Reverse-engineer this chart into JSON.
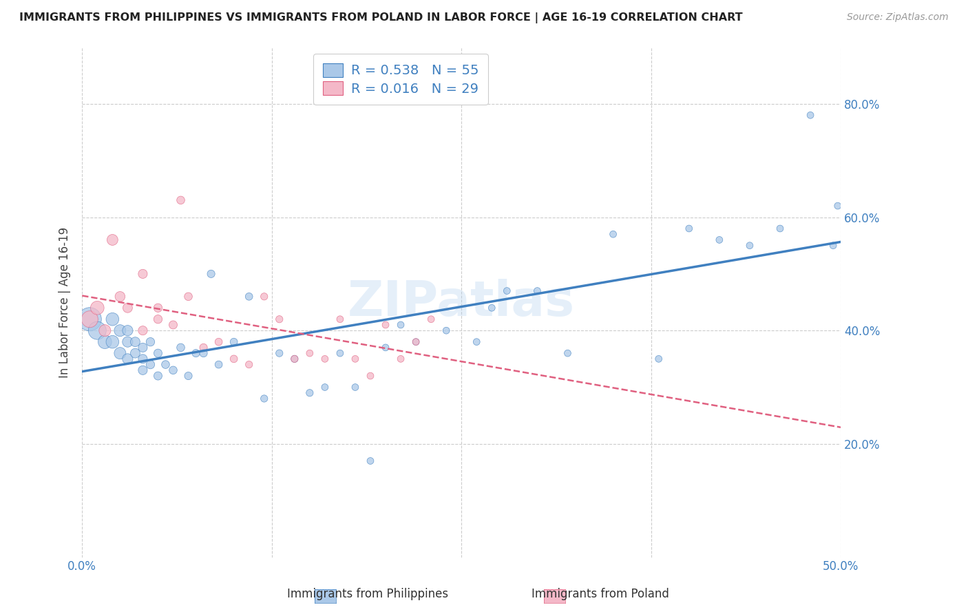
{
  "title": "IMMIGRANTS FROM PHILIPPINES VS IMMIGRANTS FROM POLAND IN LABOR FORCE | AGE 16-19 CORRELATION CHART",
  "source": "Source: ZipAtlas.com",
  "ylabel": "In Labor Force | Age 16-19",
  "xlim": [
    0.0,
    0.5
  ],
  "ylim": [
    0.0,
    0.9
  ],
  "ytick_positions": [
    0.2,
    0.4,
    0.6,
    0.8
  ],
  "ytick_labels": [
    "20.0%",
    "40.0%",
    "60.0%",
    "80.0%"
  ],
  "xtick_positions": [
    0.0,
    0.125,
    0.25,
    0.375,
    0.5
  ],
  "xtick_labels": [
    "0.0%",
    "",
    "",
    "",
    "50.0%"
  ],
  "grid_color": "#cccccc",
  "watermark": "ZIPatlas",
  "philippines_color": "#aac8e8",
  "poland_color": "#f4b8c8",
  "philippines_line_color": "#4080c0",
  "poland_line_color": "#e06080",
  "legend_r1": "R = 0.538",
  "legend_n1": "N = 55",
  "legend_r2": "R = 0.016",
  "legend_n2": "N = 29",
  "legend_label1": "Immigrants from Philippines",
  "legend_label2": "Immigrants from Poland",
  "philippines_x": [
    0.005,
    0.01,
    0.015,
    0.02,
    0.02,
    0.025,
    0.025,
    0.03,
    0.03,
    0.03,
    0.035,
    0.035,
    0.04,
    0.04,
    0.04,
    0.045,
    0.045,
    0.05,
    0.05,
    0.055,
    0.06,
    0.065,
    0.07,
    0.075,
    0.08,
    0.085,
    0.09,
    0.1,
    0.11,
    0.12,
    0.13,
    0.14,
    0.15,
    0.16,
    0.17,
    0.18,
    0.19,
    0.2,
    0.21,
    0.22,
    0.24,
    0.26,
    0.27,
    0.28,
    0.3,
    0.32,
    0.35,
    0.38,
    0.4,
    0.42,
    0.44,
    0.46,
    0.48,
    0.495,
    0.498
  ],
  "philippines_y": [
    0.42,
    0.4,
    0.38,
    0.42,
    0.38,
    0.4,
    0.36,
    0.38,
    0.35,
    0.4,
    0.38,
    0.36,
    0.35,
    0.37,
    0.33,
    0.38,
    0.34,
    0.36,
    0.32,
    0.34,
    0.33,
    0.37,
    0.32,
    0.36,
    0.36,
    0.5,
    0.34,
    0.38,
    0.46,
    0.28,
    0.36,
    0.35,
    0.29,
    0.3,
    0.36,
    0.3,
    0.17,
    0.37,
    0.41,
    0.38,
    0.4,
    0.38,
    0.44,
    0.47,
    0.47,
    0.36,
    0.57,
    0.35,
    0.58,
    0.56,
    0.55,
    0.58,
    0.78,
    0.55,
    0.62
  ],
  "poland_x": [
    0.005,
    0.01,
    0.015,
    0.02,
    0.025,
    0.03,
    0.04,
    0.04,
    0.05,
    0.05,
    0.06,
    0.065,
    0.07,
    0.08,
    0.09,
    0.1,
    0.11,
    0.12,
    0.13,
    0.14,
    0.15,
    0.16,
    0.17,
    0.18,
    0.19,
    0.2,
    0.21,
    0.22,
    0.23
  ],
  "poland_y": [
    0.42,
    0.44,
    0.4,
    0.56,
    0.46,
    0.44,
    0.5,
    0.4,
    0.42,
    0.44,
    0.41,
    0.63,
    0.46,
    0.37,
    0.38,
    0.35,
    0.34,
    0.46,
    0.42,
    0.35,
    0.36,
    0.35,
    0.42,
    0.35,
    0.32,
    0.41,
    0.35,
    0.38,
    0.42
  ],
  "philippines_sizes": [
    600,
    350,
    200,
    180,
    180,
    150,
    150,
    120,
    120,
    120,
    100,
    100,
    90,
    90,
    90,
    80,
    80,
    75,
    75,
    70,
    70,
    70,
    65,
    65,
    65,
    65,
    60,
    60,
    60,
    55,
    55,
    55,
    55,
    50,
    50,
    50,
    50,
    50,
    50,
    50,
    50,
    50,
    50,
    50,
    50,
    50,
    50,
    50,
    50,
    50,
    50,
    50,
    50,
    50,
    50
  ],
  "poland_sizes": [
    300,
    200,
    150,
    130,
    110,
    100,
    90,
    90,
    80,
    80,
    75,
    70,
    70,
    65,
    60,
    60,
    55,
    55,
    55,
    55,
    50,
    50,
    50,
    50,
    50,
    50,
    50,
    50,
    50
  ]
}
